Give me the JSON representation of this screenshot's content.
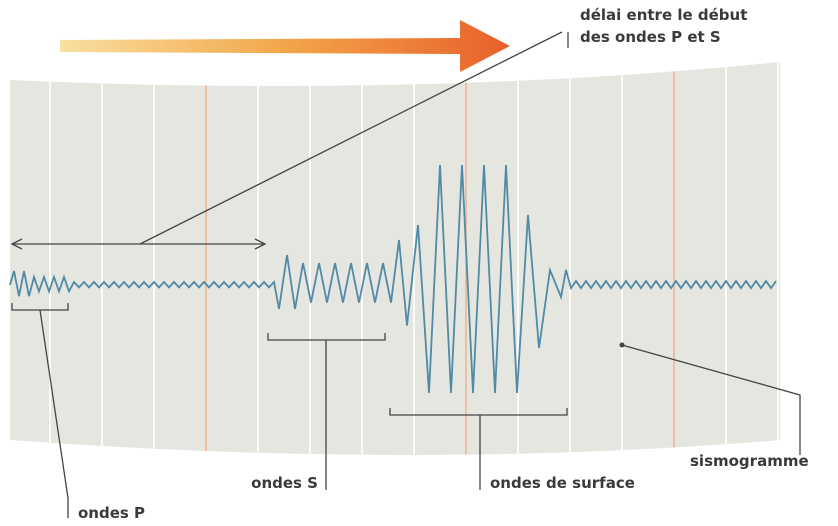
{
  "labels": {
    "delay": [
      "délai entre le début",
      "des ondes P et S"
    ],
    "p_waves": "ondes P",
    "s_waves": "ondes S",
    "surface_waves": "ondes de surface",
    "seismogram": "sismogramme"
  }
}
